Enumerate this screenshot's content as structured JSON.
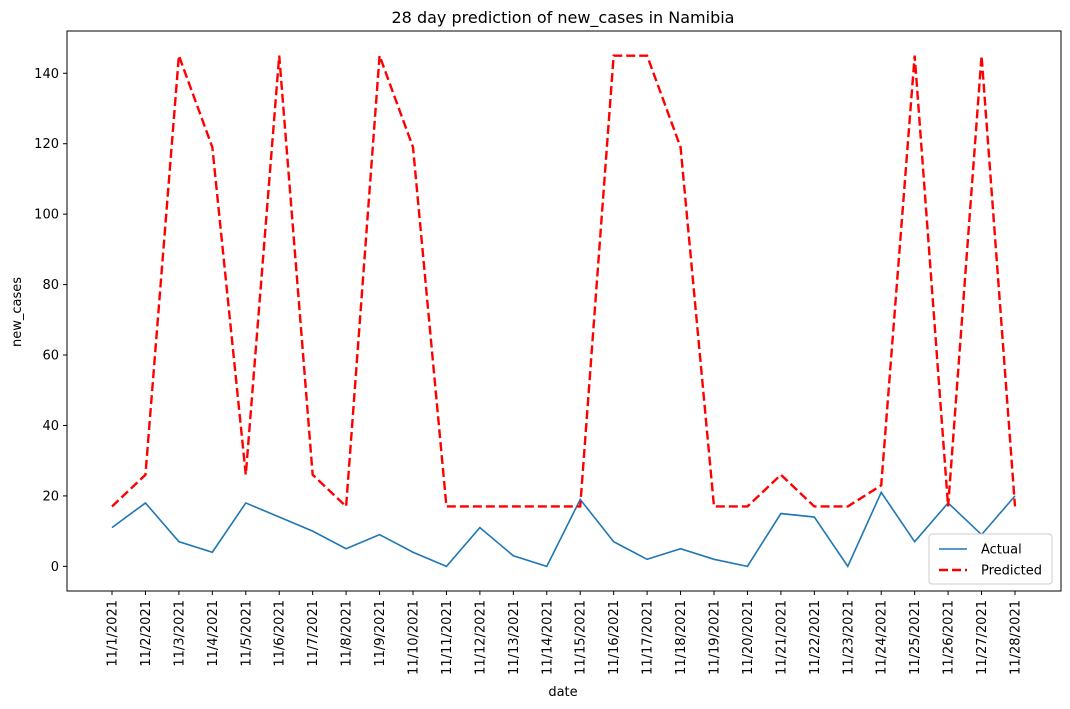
{
  "chart_data": {
    "type": "line",
    "title": "28 day prediction of new_cases in Namibia",
    "xlabel": "date",
    "ylabel": "new_cases",
    "categories": [
      "11/1/2021",
      "11/2/2021",
      "11/3/2021",
      "11/4/2021",
      "11/5/2021",
      "11/6/2021",
      "11/7/2021",
      "11/8/2021",
      "11/9/2021",
      "11/10/2021",
      "11/11/2021",
      "11/12/2021",
      "11/13/2021",
      "11/14/2021",
      "11/15/2021",
      "11/16/2021",
      "11/17/2021",
      "11/18/2021",
      "11/19/2021",
      "11/20/2021",
      "11/21/2021",
      "11/22/2021",
      "11/23/2021",
      "11/24/2021",
      "11/25/2021",
      "11/26/2021",
      "11/27/2021",
      "11/28/2021"
    ],
    "ylim": [
      -7,
      152
    ],
    "yticks": [
      0,
      20,
      40,
      60,
      80,
      100,
      120,
      140
    ],
    "grid": false,
    "legend_position": "bottom-right",
    "series": [
      {
        "name": "Actual",
        "style": "solid",
        "color": "#1f77b4",
        "values": [
          11,
          18,
          7,
          4,
          18,
          14,
          10,
          5,
          9,
          4,
          0,
          11,
          3,
          0,
          19,
          7,
          2,
          5,
          2,
          0,
          15,
          14,
          0,
          21,
          7,
          18,
          9,
          20
        ]
      },
      {
        "name": "Predicted",
        "style": "dashed",
        "color": "#ff0000",
        "values": [
          17,
          26,
          145,
          119,
          26,
          145,
          26,
          17,
          145,
          119,
          17,
          17,
          17,
          17,
          17,
          145,
          145,
          119,
          17,
          17,
          26,
          17,
          17,
          23,
          145,
          17,
          145,
          17
        ]
      }
    ]
  }
}
